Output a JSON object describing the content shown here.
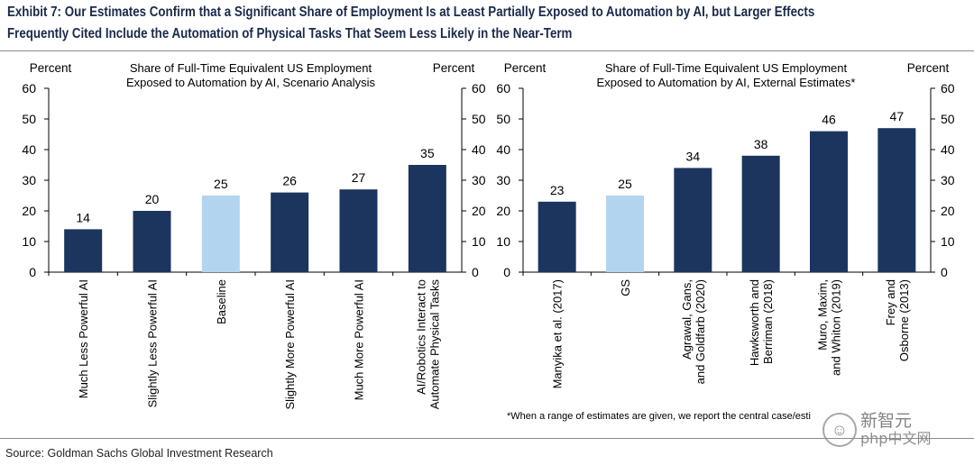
{
  "exhibit": {
    "title_line1": "Exhibit 7: Our Estimates Confirm that a Significant Share of Employment Is at Least Partially Exposed to Automation by AI, but Larger Effects",
    "title_line2": "Frequently Cited Include the Automation of Physical Tasks That Seem Less Likely in the Near-Term"
  },
  "source": "Source: Goldman Sachs Global Investment Research",
  "footnote": "*When a range of estimates are given, we report the central case/esti",
  "watermark": {
    "symbol": "☺",
    "line1": "新智元",
    "line2": "php中文网"
  },
  "colors": {
    "dark": "#1c355e",
    "light": "#b3d4ef",
    "axis": "#000000"
  },
  "chart_data": [
    {
      "type": "bar",
      "title_line1": "Share of Full-Time Equivalent US Employment",
      "title_line2": "Exposed to Automation by AI, Scenario Analysis",
      "ylabel_left": "Percent",
      "ylabel_right": "Percent",
      "ylim": [
        0,
        60
      ],
      "yticks": [
        0,
        10,
        20,
        30,
        40,
        50,
        60
      ],
      "categories": [
        [
          "Much Less Powerful AI"
        ],
        [
          "Slightly Less Powerful AI"
        ],
        [
          "Baseline"
        ],
        [
          "Slightly More Powerful AI"
        ],
        [
          "Much More Powerful AI"
        ],
        [
          "AI/Robotics Interact to",
          "Automate Physical Tasks"
        ]
      ],
      "values": [
        14,
        20,
        25,
        26,
        27,
        35
      ],
      "highlight": [
        false,
        false,
        true,
        false,
        false,
        false
      ],
      "data_labels": true
    },
    {
      "type": "bar",
      "title_line1": "Share of Full-Time Equivalent US Employment",
      "title_line2": "Exposed to Automation by AI, External Estimates*",
      "ylabel_left": "Percent",
      "ylabel_right": "Percent",
      "ylim": [
        0,
        60
      ],
      "yticks": [
        0,
        10,
        20,
        30,
        40,
        50,
        60
      ],
      "categories": [
        [
          "Manyika et al. (2017)"
        ],
        [
          "GS"
        ],
        [
          "Agrawal, Gans,",
          "and Goldfarb (2020)"
        ],
        [
          "Hawksworth and",
          "Berriman (2018)"
        ],
        [
          "Muro, Maxim,",
          "and Whiton (2019)"
        ],
        [
          "Frey and",
          "Osborne (2013)"
        ]
      ],
      "values": [
        23,
        25,
        34,
        38,
        46,
        47
      ],
      "highlight": [
        false,
        true,
        false,
        false,
        false,
        false
      ],
      "data_labels": true
    }
  ]
}
